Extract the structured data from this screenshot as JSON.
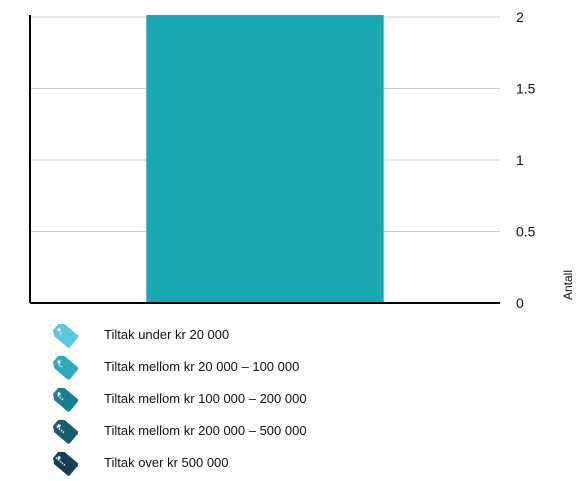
{
  "chart_data": {
    "type": "bar",
    "categories": [
      ""
    ],
    "values": [
      2
    ],
    "ylabel": "Antall",
    "ylim": [
      0,
      2
    ],
    "y_ticks": [
      "0",
      "0.5",
      "1",
      "1.5",
      "2"
    ],
    "y_tick_values": [
      0,
      0.5,
      1,
      1.5,
      2
    ],
    "y_axis_position": "right",
    "grid": true,
    "bar_color": "#19a7b3",
    "legend_position": "bottom",
    "legend": [
      {
        "label": "Tiltak under kr 20 000",
        "color": "#59c8e0",
        "icon": "price-tag-icon"
      },
      {
        "label": "Tiltak mellom kr 20 000 – 100 000",
        "color": "#2fa9bd",
        "icon": "price-tag-icon"
      },
      {
        "label": "Tiltak mellom kr 100 000 – 200 000",
        "color": "#1b7f93",
        "icon": "price-tag-icon"
      },
      {
        "label": "Tiltak mellom kr 200 000 – 500 000",
        "color": "#1a5b6e",
        "icon": "price-tag-icon"
      },
      {
        "label": "Tiltak over kr 500 000",
        "color": "#173f55",
        "icon": "price-tag-icon"
      }
    ]
  }
}
